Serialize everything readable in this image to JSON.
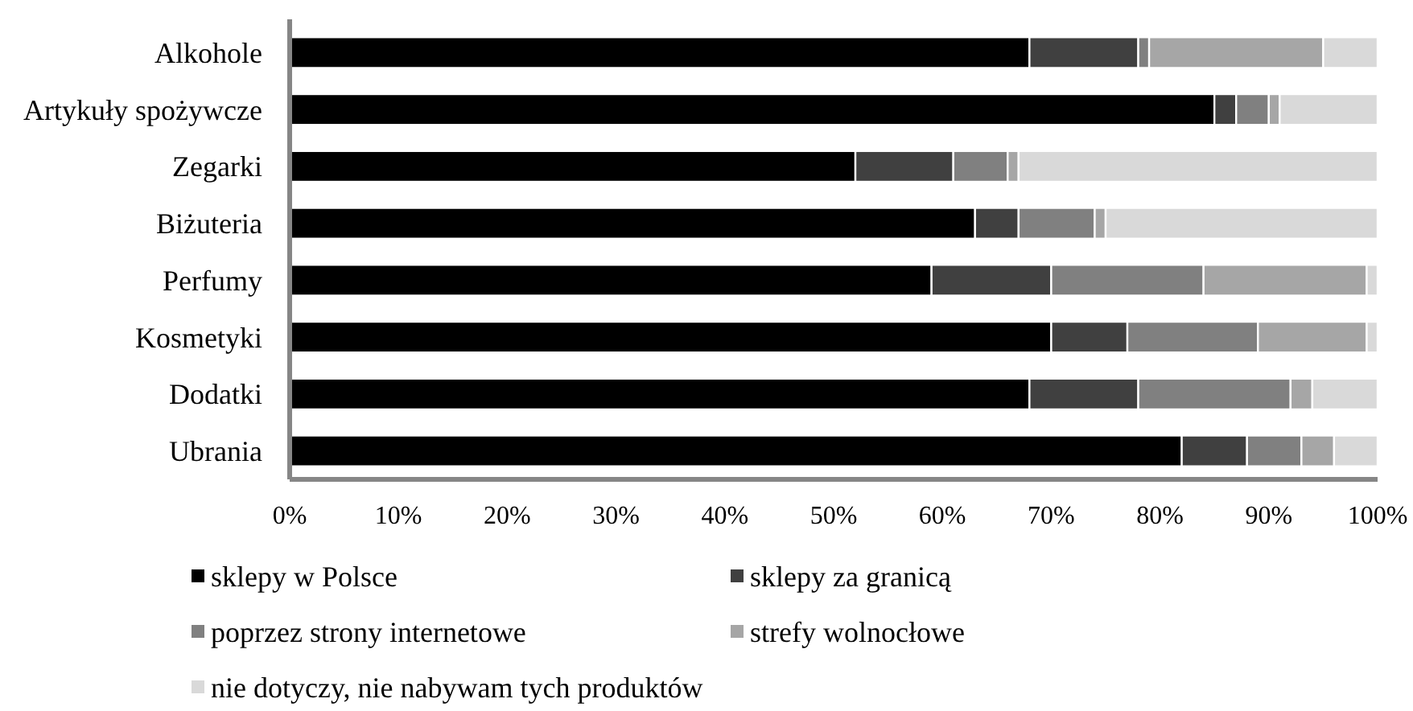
{
  "chart_data": {
    "type": "bar",
    "orientation": "horizontal",
    "stacked": true,
    "categories": [
      "Alkohole",
      "Artykuły spożywcze",
      "Zegarki",
      "Biżuteria",
      "Perfumy",
      "Kosmetyki",
      "Dodatki",
      "Ubrania"
    ],
    "series": [
      {
        "name": "sklepy w Polsce",
        "color": "#000000",
        "values": [
          68,
          85,
          52,
          63,
          59,
          70,
          68,
          82
        ]
      },
      {
        "name": "sklepy za granicą",
        "color": "#404040",
        "values": [
          10,
          2,
          9,
          4,
          11,
          7,
          10,
          6
        ]
      },
      {
        "name": "poprzez strony internetowe",
        "color": "#808080",
        "values": [
          1,
          3,
          5,
          7,
          14,
          12,
          14,
          5
        ]
      },
      {
        "name": "strefy wolnocłowe",
        "color": "#a6a6a6",
        "values": [
          16,
          1,
          1,
          1,
          15,
          10,
          2,
          3
        ]
      },
      {
        "name": "nie dotyczy, nie nabywam tych produktów",
        "color": "#d9d9d9",
        "values": [
          5,
          9,
          33,
          25,
          1,
          1,
          6,
          4
        ]
      }
    ],
    "xlim": [
      0,
      100
    ],
    "xticks": [
      {
        "value": 0,
        "label": "0%"
      },
      {
        "value": 10,
        "label": "10%"
      },
      {
        "value": 20,
        "label": "20%"
      },
      {
        "value": 30,
        "label": "30%"
      },
      {
        "value": 40,
        "label": "40%"
      },
      {
        "value": 50,
        "label": "50%"
      },
      {
        "value": 60,
        "label": "60%"
      },
      {
        "value": 70,
        "label": "70%"
      },
      {
        "value": 80,
        "label": "80%"
      },
      {
        "value": 90,
        "label": "90%"
      },
      {
        "value": 100,
        "label": "100%"
      }
    ],
    "legend": "bottom"
  }
}
